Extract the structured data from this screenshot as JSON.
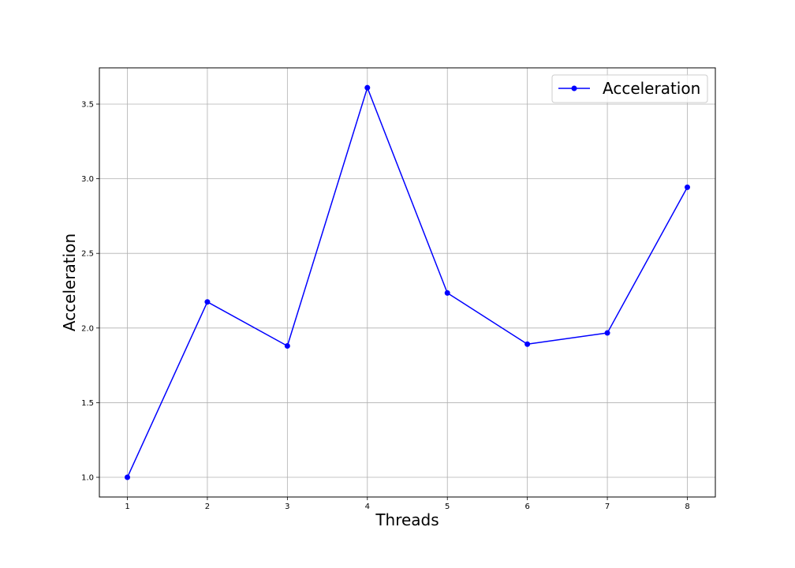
{
  "chart_data": {
    "type": "line",
    "title": "",
    "xlabel": "Threads",
    "ylabel": "Acceleration",
    "x": [
      1,
      2,
      3,
      4,
      5,
      6,
      7,
      8
    ],
    "series": [
      {
        "name": "Acceleration",
        "values": [
          1.0,
          2.175,
          1.88,
          3.61,
          2.235,
          1.892,
          1.967,
          2.943
        ],
        "color": "#0000ff",
        "marker": "circle"
      }
    ],
    "xlim": [
      0.65,
      8.35
    ],
    "ylim": [
      0.868,
      3.743
    ],
    "xticks": [
      1,
      2,
      3,
      4,
      5,
      6,
      7,
      8
    ],
    "xtick_labels": [
      "1",
      "2",
      "3",
      "4",
      "5",
      "6",
      "7",
      "8"
    ],
    "yticks": [
      1.0,
      1.5,
      2.0,
      2.5,
      3.0,
      3.5
    ],
    "ytick_labels": [
      "1.0",
      "1.5",
      "2.0",
      "2.5",
      "3.0",
      "3.5"
    ],
    "grid": true,
    "legend_position": "top-right"
  }
}
